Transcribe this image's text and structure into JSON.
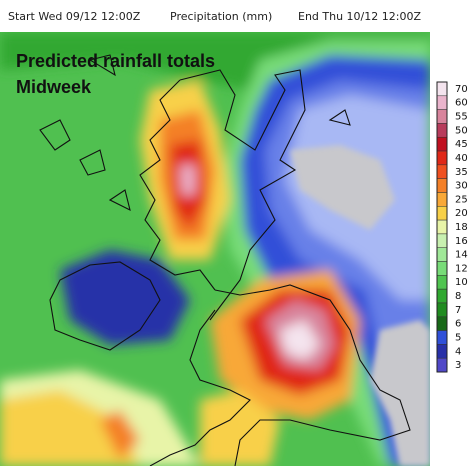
{
  "header": {
    "start": "Start Wed 09/12 12:00Z",
    "variable": "Precipitation (mm)",
    "end": "End Thu 10/12 12:00Z"
  },
  "title": {
    "line1": "Predicted rainfall totals",
    "line2": "Midweek"
  },
  "legend": {
    "levels": [
      {
        "value": 70,
        "color": "#f4e4ee"
      },
      {
        "value": 60,
        "color": "#eab4cc"
      },
      {
        "value": 55,
        "color": "#d8849c"
      },
      {
        "value": 50,
        "color": "#b83c5c"
      },
      {
        "value": 45,
        "color": "#c01020"
      },
      {
        "value": 40,
        "color": "#e02818"
      },
      {
        "value": 35,
        "color": "#f05020"
      },
      {
        "value": 30,
        "color": "#f48028"
      },
      {
        "value": 25,
        "color": "#f8a838"
      },
      {
        "value": 20,
        "color": "#f8d048"
      },
      {
        "value": 18,
        "color": "#e8f4a8"
      },
      {
        "value": 16,
        "color": "#c8f0b0"
      },
      {
        "value": 14,
        "color": "#a0e898"
      },
      {
        "value": 12,
        "color": "#78dc78"
      },
      {
        "value": 10,
        "color": "#50c450"
      },
      {
        "value": 8,
        "color": "#30a830"
      },
      {
        "value": 7,
        "color": "#208c20"
      },
      {
        "value": 6,
        "color": "#186818"
      },
      {
        "value": 5,
        "color": "#3050d8"
      },
      {
        "value": 4,
        "color": "#2830a8"
      },
      {
        "value": 3,
        "color": "#5048c8"
      }
    ]
  }
}
